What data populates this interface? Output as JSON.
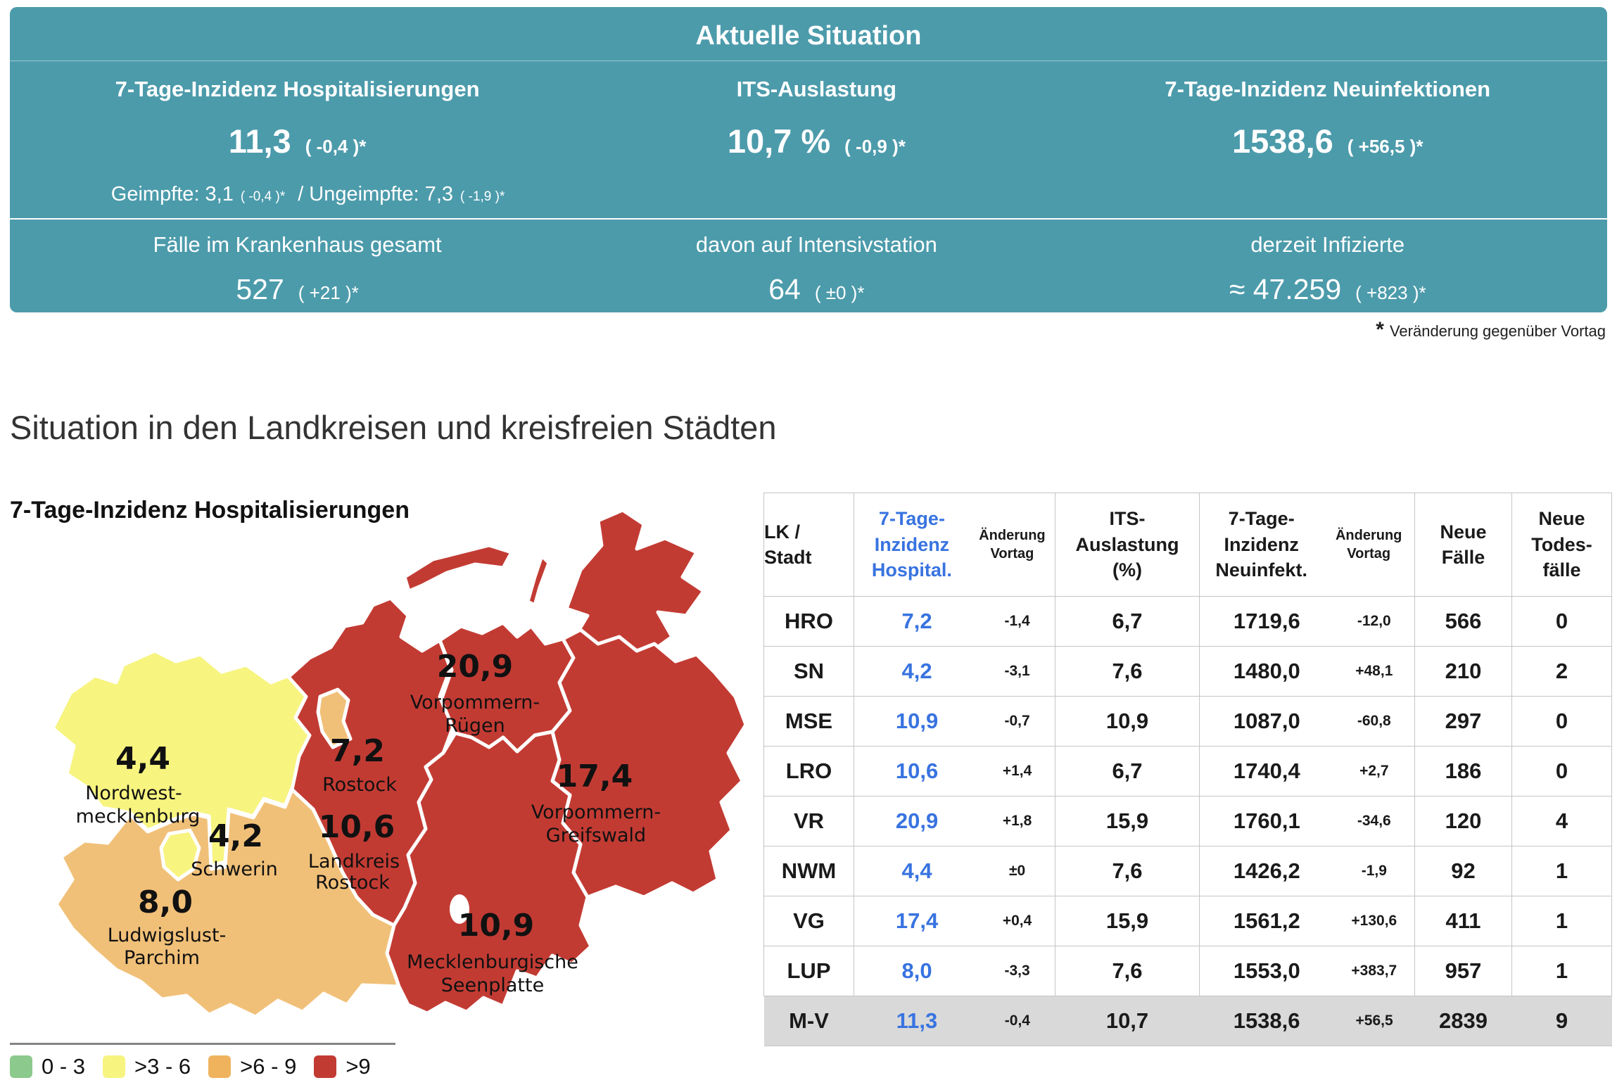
{
  "banner": {
    "title": "Aktuelle Situation",
    "cols": [
      {
        "label": "7-Tage-Inzidenz Hospitalisierungen",
        "value": "11,3",
        "change": "( -0,4 )*"
      },
      {
        "label": "ITS-Auslastung",
        "value": "10,7 %",
        "change": "( -0,9 )*"
      },
      {
        "label": "7-Tage-Inzidenz Neuinfektionen",
        "value": "1538,6",
        "change": "( +56,5 )*"
      }
    ],
    "sub": {
      "geimpfte": "Geimpfte: 3,1",
      "geimpfte_chg": "( -0,4 )*",
      "sep": "/",
      "ungeimpfte": "Ungeimpfte: 7,3",
      "ungeimpfte_chg": "( -1,9 )*"
    },
    "row2": [
      {
        "label": "Fälle im Krankenhaus gesamt",
        "value": "527",
        "change": "( +21 )*"
      },
      {
        "label": "davon auf Intensivstation",
        "value": "64",
        "change": "( ±0 )*"
      },
      {
        "label": "derzeit Infizierte",
        "value": "≈ 47.259",
        "change": "( +823 )*"
      }
    ]
  },
  "footnote": {
    "star": "*",
    "text": "Veränderung gegenüber Vortag"
  },
  "section_title": "Situation in den Landkreisen und kreisfreien Städten",
  "map": {
    "title": "7-Tage-Inzidenz Hospitalisierungen",
    "colors": {
      "yellow": "#F7F480",
      "orange": "#F1C078",
      "red": "#C23B33",
      "lake": "#ffffff"
    },
    "regions": [
      {
        "id": "vorpommern-ruegen",
        "value": "20,9",
        "name_lines": [
          "Vorpommern-",
          "Rügen"
        ]
      },
      {
        "id": "rostock-stadt",
        "value": "7,2",
        "name_lines": [
          "Rostock",
          ""
        ]
      },
      {
        "id": "landkreis-rostock",
        "value": "10,6",
        "name_lines": [
          "Landkreis",
          "Rostock"
        ]
      },
      {
        "id": "vorpommern-greifswald",
        "value": "17,4",
        "name_lines": [
          "Vorpommern-",
          "Greifswald"
        ]
      },
      {
        "id": "mecklenburgische-seenplatte",
        "value": "10,9",
        "name_lines": [
          "Mecklenburgische",
          "Seenplatte"
        ]
      },
      {
        "id": "nordwestmecklenburg",
        "value": "4,4",
        "name_lines": [
          "Nordwest-",
          "mecklenburg"
        ]
      },
      {
        "id": "schwerin",
        "value": "4,2",
        "name_lines": [
          "Schwerin",
          ""
        ]
      },
      {
        "id": "ludwigslust-parchim",
        "value": "8,0",
        "name_lines": [
          "Ludwigslust-",
          "Parchim"
        ]
      }
    ],
    "legend": [
      {
        "label": "0 - 3",
        "color": "#8CC98C"
      },
      {
        "label": ">3 - 6",
        "color": "#F7F480"
      },
      {
        "label": ">6 - 9",
        "color": "#EFB35E"
      },
      {
        "label": ">9",
        "color": "#C23B33"
      }
    ]
  },
  "table": {
    "headers": {
      "col1": "LK /\nStadt",
      "col2_main": "7-Tage-\nInzidenz\nHospital.",
      "col2_sub": "Änderung\nVortag",
      "col3": "ITS-\nAuslastung\n(%)",
      "col4_main": "7-Tage-\nInzidenz\nNeuinfekt.",
      "col4_sub": "Änderung\nVortag",
      "col5": "Neue\nFälle",
      "col6": "Neue\nTodes-\nfälle"
    },
    "rows": [
      {
        "code": "HRO",
        "hosp": "7,2",
        "hosp_change": "-1,4",
        "its": "6,7",
        "inz": "1719,6",
        "inz_change": "-12,0",
        "new_cases": "566",
        "new_deaths": "0"
      },
      {
        "code": "SN",
        "hosp": "4,2",
        "hosp_change": "-3,1",
        "its": "7,6",
        "inz": "1480,0",
        "inz_change": "+48,1",
        "new_cases": "210",
        "new_deaths": "2"
      },
      {
        "code": "MSE",
        "hosp": "10,9",
        "hosp_change": "-0,7",
        "its": "10,9",
        "inz": "1087,0",
        "inz_change": "-60,8",
        "new_cases": "297",
        "new_deaths": "0"
      },
      {
        "code": "LRO",
        "hosp": "10,6",
        "hosp_change": "+1,4",
        "its": "6,7",
        "inz": "1740,4",
        "inz_change": "+2,7",
        "new_cases": "186",
        "new_deaths": "0"
      },
      {
        "code": "VR",
        "hosp": "20,9",
        "hosp_change": "+1,8",
        "its": "15,9",
        "inz": "1760,1",
        "inz_change": "-34,6",
        "new_cases": "120",
        "new_deaths": "4"
      },
      {
        "code": "NWM",
        "hosp": "4,4",
        "hosp_change": "±0",
        "its": "7,6",
        "inz": "1426,2",
        "inz_change": "-1,9",
        "new_cases": "92",
        "new_deaths": "1"
      },
      {
        "code": "VG",
        "hosp": "17,4",
        "hosp_change": "+0,4",
        "its": "15,9",
        "inz": "1561,2",
        "inz_change": "+130,6",
        "new_cases": "411",
        "new_deaths": "1"
      },
      {
        "code": "LUP",
        "hosp": "8,0",
        "hosp_change": "-3,3",
        "its": "7,6",
        "inz": "1553,0",
        "inz_change": "+383,7",
        "new_cases": "957",
        "new_deaths": "1"
      },
      {
        "code": "M-V",
        "hosp": "11,3",
        "hosp_change": "-0,4",
        "its": "10,7",
        "inz": "1538,6",
        "inz_change": "+56,5",
        "new_cases": "2839",
        "new_deaths": "9"
      }
    ]
  },
  "chart_data": [
    {
      "type": "heatmap",
      "subtype": "choropleth_map",
      "title": "7-Tage-Inzidenz Hospitalisierungen",
      "regions": [
        {
          "name": "Vorpommern-Rügen",
          "value": 20.9
        },
        {
          "name": "Rostock",
          "value": 7.2
        },
        {
          "name": "Landkreis Rostock",
          "value": 10.6
        },
        {
          "name": "Vorpommern-Greifswald",
          "value": 17.4
        },
        {
          "name": "Mecklenburgische Seenplatte",
          "value": 10.9
        },
        {
          "name": "Nordwestmecklenburg",
          "value": 4.4
        },
        {
          "name": "Schwerin",
          "value": 4.2
        },
        {
          "name": "Ludwigslust-Parchim",
          "value": 8.0
        }
      ],
      "legend_bins": [
        {
          "range": "0 - 3",
          "color": "#8CC98C"
        },
        {
          "range": ">3 - 6",
          "color": "#F7F480"
        },
        {
          "range": ">6 - 9",
          "color": "#EFB35E"
        },
        {
          "range": ">9",
          "color": "#C23B33"
        }
      ]
    },
    {
      "type": "table",
      "title": "Situation in den Landkreisen und kreisfreien Städten",
      "columns": [
        "LK / Stadt",
        "7-Tage-Inzidenz Hospital.",
        "Änderung Vortag",
        "ITS-Auslastung (%)",
        "7-Tage-Inzidenz Neuinfekt.",
        "Änderung Vortag",
        "Neue Fälle",
        "Neue Todesfälle"
      ],
      "rows": [
        [
          "HRO",
          7.2,
          -1.4,
          6.7,
          1719.6,
          -12.0,
          566,
          0
        ],
        [
          "SN",
          4.2,
          -3.1,
          7.6,
          1480.0,
          48.1,
          210,
          2
        ],
        [
          "MSE",
          10.9,
          -0.7,
          10.9,
          1087.0,
          -60.8,
          297,
          0
        ],
        [
          "LRO",
          10.6,
          1.4,
          6.7,
          1740.4,
          2.7,
          186,
          0
        ],
        [
          "VR",
          20.9,
          1.8,
          15.9,
          1760.1,
          -34.6,
          120,
          4
        ],
        [
          "NWM",
          4.4,
          0,
          7.6,
          1426.2,
          -1.9,
          92,
          1
        ],
        [
          "VG",
          17.4,
          0.4,
          15.9,
          1561.2,
          130.6,
          411,
          1
        ],
        [
          "LUP",
          8.0,
          -3.3,
          7.6,
          1553.0,
          383.7,
          957,
          1
        ],
        [
          "M-V",
          11.3,
          -0.4,
          10.7,
          1538.6,
          56.5,
          2839,
          9
        ]
      ]
    }
  ]
}
